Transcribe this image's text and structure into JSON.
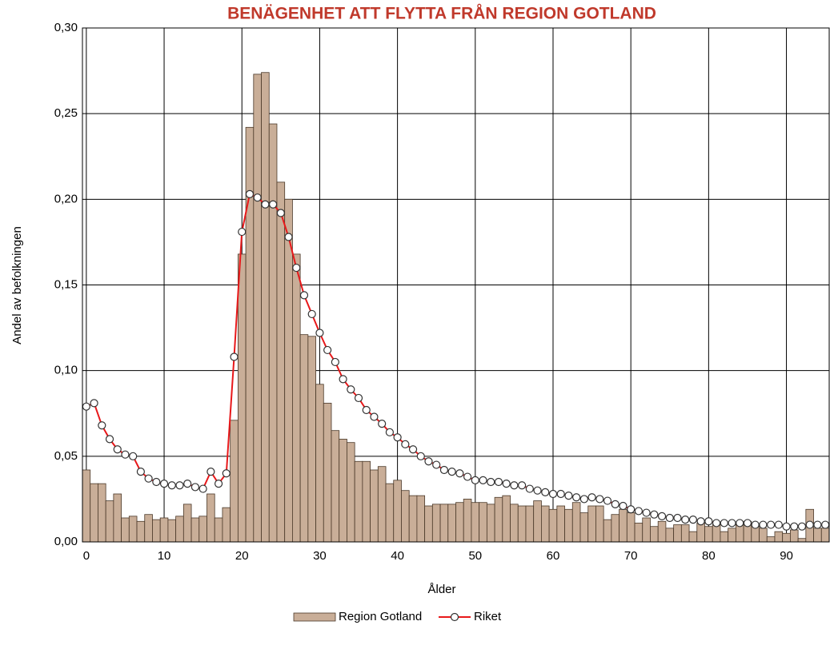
{
  "chart_data": {
    "type": "bar",
    "title": "BENÄGENHET ATT FLYTTA FRÅN REGION GOTLAND",
    "xlabel": "Ålder",
    "ylabel": "Andel av befolkningen",
    "x": [
      0,
      1,
      2,
      3,
      4,
      5,
      6,
      7,
      8,
      9,
      10,
      11,
      12,
      13,
      14,
      15,
      16,
      17,
      18,
      19,
      20,
      21,
      22,
      23,
      24,
      25,
      26,
      27,
      28,
      29,
      30,
      31,
      32,
      33,
      34,
      35,
      36,
      37,
      38,
      39,
      40,
      41,
      42,
      43,
      44,
      45,
      46,
      47,
      48,
      49,
      50,
      51,
      52,
      53,
      54,
      55,
      56,
      57,
      58,
      59,
      60,
      61,
      62,
      63,
      64,
      65,
      66,
      67,
      68,
      69,
      70,
      71,
      72,
      73,
      74,
      75,
      76,
      77,
      78,
      79,
      80,
      81,
      82,
      83,
      84,
      85,
      86,
      87,
      88,
      89,
      90,
      91,
      92,
      93,
      94,
      95
    ],
    "series": [
      {
        "name": "Region Gotland",
        "type": "bar",
        "color": "#c9ae98",
        "values": [
          0.042,
          0.034,
          0.034,
          0.024,
          0.028,
          0.014,
          0.015,
          0.012,
          0.016,
          0.013,
          0.014,
          0.013,
          0.015,
          0.022,
          0.014,
          0.015,
          0.028,
          0.014,
          0.02,
          0.071,
          0.168,
          0.242,
          0.273,
          0.274,
          0.244,
          0.21,
          0.2,
          0.168,
          0.121,
          0.12,
          0.092,
          0.081,
          0.065,
          0.06,
          0.058,
          0.047,
          0.047,
          0.042,
          0.044,
          0.034,
          0.036,
          0.03,
          0.027,
          0.027,
          0.021,
          0.022,
          0.022,
          0.022,
          0.023,
          0.025,
          0.023,
          0.023,
          0.022,
          0.026,
          0.027,
          0.022,
          0.021,
          0.021,
          0.024,
          0.021,
          0.019,
          0.021,
          0.019,
          0.023,
          0.017,
          0.021,
          0.021,
          0.013,
          0.016,
          0.019,
          0.017,
          0.011,
          0.014,
          0.009,
          0.012,
          0.008,
          0.01,
          0.01,
          0.006,
          0.011,
          0.009,
          0.01,
          0.006,
          0.008,
          0.011,
          0.012,
          0.01,
          0.008,
          0.003,
          0.006,
          0.005,
          0.007,
          0.002,
          0.019,
          0.008,
          0.008
        ]
      },
      {
        "name": "Riket",
        "type": "line",
        "color": "#e8181a",
        "values": [
          0.079,
          0.081,
          0.068,
          0.06,
          0.054,
          0.051,
          0.05,
          0.041,
          0.037,
          0.035,
          0.034,
          0.033,
          0.033,
          0.034,
          0.032,
          0.031,
          0.041,
          0.034,
          0.04,
          0.108,
          0.181,
          0.203,
          0.201,
          0.197,
          0.197,
          0.192,
          0.178,
          0.16,
          0.144,
          0.133,
          0.122,
          0.112,
          0.105,
          0.095,
          0.089,
          0.084,
          0.077,
          0.073,
          0.069,
          0.064,
          0.061,
          0.057,
          0.054,
          0.05,
          0.047,
          0.045,
          0.042,
          0.041,
          0.04,
          0.038,
          0.036,
          0.036,
          0.035,
          0.035,
          0.034,
          0.033,
          0.033,
          0.031,
          0.03,
          0.029,
          0.028,
          0.028,
          0.027,
          0.026,
          0.025,
          0.026,
          0.025,
          0.024,
          0.022,
          0.021,
          0.019,
          0.018,
          0.017,
          0.016,
          0.015,
          0.014,
          0.014,
          0.013,
          0.013,
          0.012,
          0.012,
          0.011,
          0.011,
          0.011,
          0.011,
          0.011,
          0.01,
          0.01,
          0.01,
          0.01,
          0.009,
          0.009,
          0.009,
          0.01,
          0.01,
          0.01
        ]
      }
    ],
    "xlim": [
      -0.5,
      95.5
    ],
    "xticks": [
      0,
      10,
      20,
      30,
      40,
      50,
      60,
      70,
      80,
      90
    ],
    "ylim": [
      0,
      0.3
    ],
    "yticks": [
      {
        "value": 0,
        "label": "0,00"
      },
      {
        "value": 0.05,
        "label": "0,05"
      },
      {
        "value": 0.1,
        "label": "0,10"
      },
      {
        "value": 0.15,
        "label": "0,15"
      },
      {
        "value": 0.2,
        "label": "0,20"
      },
      {
        "value": 0.25,
        "label": "0,25"
      },
      {
        "value": 0.3,
        "label": "0,30"
      }
    ],
    "grid": true,
    "legend": "bottom",
    "title_color": "#c0392b"
  }
}
